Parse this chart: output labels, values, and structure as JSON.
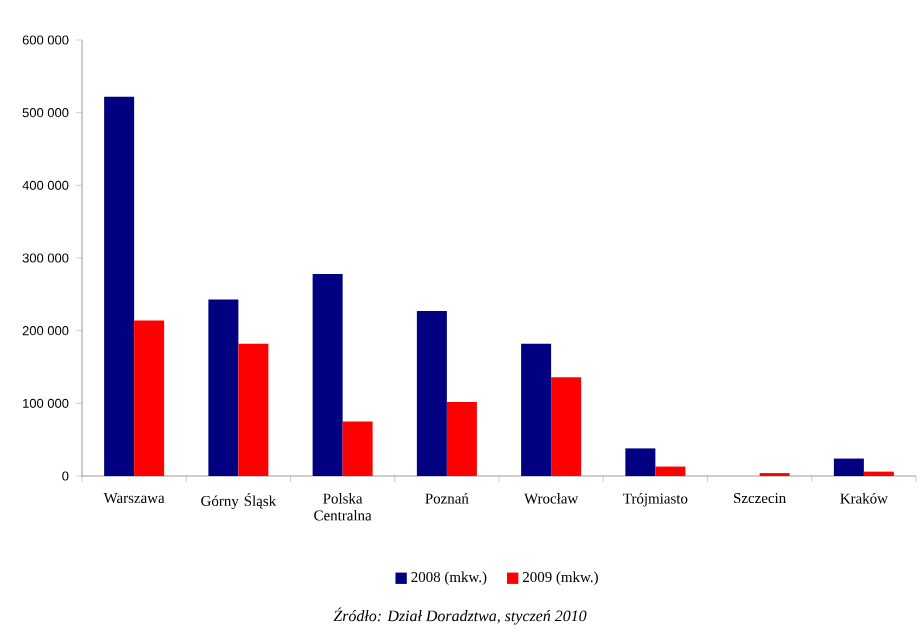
{
  "chart_data": {
    "type": "bar",
    "categories": [
      "Warszawa",
      "Górny Śląsk",
      "Polska Centralna",
      "Poznań",
      "Wrocław",
      "Trójmiasto",
      "Szczecin",
      "Kraków"
    ],
    "series": [
      {
        "name": "2008 (mkw.)",
        "color": "#000080",
        "values": [
          522000,
          243000,
          278000,
          227000,
          182000,
          38000,
          0,
          24000
        ]
      },
      {
        "name": "2009 (mkw.)",
        "color": "#ff0000",
        "values": [
          214000,
          182000,
          75000,
          102000,
          136000,
          13000,
          4000,
          6000
        ]
      }
    ],
    "ylim": [
      0,
      600000
    ],
    "yticks": [
      {
        "value": 0,
        "label": "0"
      },
      {
        "value": 100000,
        "label": "100 000"
      },
      {
        "value": 200000,
        "label": "200 000"
      },
      {
        "value": 300000,
        "label": "300 000"
      },
      {
        "value": 400000,
        "label": "400 000"
      },
      {
        "value": 500000,
        "label": "500 000"
      },
      {
        "value": 600000,
        "label": "600 000"
      }
    ],
    "grid": false,
    "legend": "bottom",
    "annotations": [
      "Źródło: Dział Doradztwa, styczeń 2010"
    ]
  }
}
